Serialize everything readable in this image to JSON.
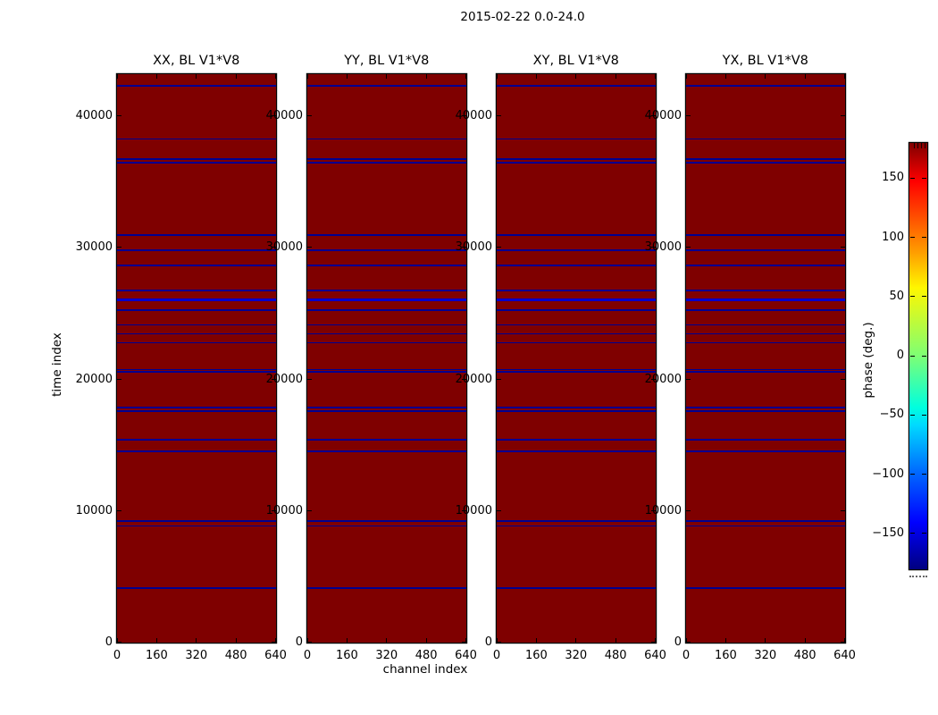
{
  "figure": {
    "title": "2015-02-22 0.0-24.0"
  },
  "chart_data": {
    "type": "heatmap",
    "title": "2015-02-22 0.0-24.0",
    "panels": [
      {
        "title": "XX, BL V1*V8"
      },
      {
        "title": "YY, BL V1*V8"
      },
      {
        "title": "XY, BL V1*V8"
      },
      {
        "title": "YX, BL V1*V8"
      }
    ],
    "xlabel": "channel index",
    "ylabel": "time index",
    "x_ticks": [
      "0",
      "160",
      "320",
      "480",
      "640"
    ],
    "x_tick_values": [
      0,
      160,
      320,
      480,
      640
    ],
    "x_range": [
      0,
      640
    ],
    "y_ticks": [
      "0",
      "10000",
      "20000",
      "30000",
      "40000"
    ],
    "y_tick_values": [
      0,
      10000,
      20000,
      30000,
      40000
    ],
    "y_range": [
      0,
      43200
    ],
    "grid": false,
    "background": {
      "value_deg": 180,
      "color": "#7f0000"
    },
    "line_color": "#000090",
    "lines_note": "horizontal low-phase stripes at these time indices, identical in all four panels",
    "lines": [
      {
        "t": 42300,
        "w": 1.5
      },
      {
        "t": 38250,
        "w": 1.5
      },
      {
        "t": 36710,
        "w": 1.5
      },
      {
        "t": 36440,
        "w": 1.5
      },
      {
        "t": 30940,
        "w": 1.5
      },
      {
        "t": 29815,
        "w": 2
      },
      {
        "t": 28630,
        "w": 1.5
      },
      {
        "t": 26730,
        "w": 1.5
      },
      {
        "t": 26000,
        "w": 3,
        "c": "#0000cc"
      },
      {
        "t": 25230,
        "w": 1.5
      },
      {
        "t": 24110,
        "w": 1.5
      },
      {
        "t": 23430,
        "w": 1.5
      },
      {
        "t": 22750,
        "w": 1.5
      },
      {
        "t": 20715,
        "w": 1.5
      },
      {
        "t": 20545,
        "w": 1.5
      },
      {
        "t": 17830,
        "w": 1.5
      },
      {
        "t": 17560,
        "w": 1.5
      },
      {
        "t": 15385,
        "w": 1.5
      },
      {
        "t": 14500,
        "w": 1.5
      },
      {
        "t": 9205,
        "w": 1.5
      },
      {
        "t": 8830,
        "w": 1.5
      },
      {
        "t": 4110,
        "w": 1.5
      }
    ],
    "colorbar": {
      "label": "phase (deg.)",
      "ticks": [
        150,
        100,
        50,
        0,
        -50,
        -100,
        -150
      ],
      "tick_labels": [
        "150",
        "100",
        "50",
        "0",
        "−50",
        "−100",
        "−150"
      ],
      "range_deg": [
        -180,
        180
      ],
      "colormap": "jet",
      "top_color": "#800000",
      "bottom_color": "#000080",
      "position": "right"
    }
  }
}
